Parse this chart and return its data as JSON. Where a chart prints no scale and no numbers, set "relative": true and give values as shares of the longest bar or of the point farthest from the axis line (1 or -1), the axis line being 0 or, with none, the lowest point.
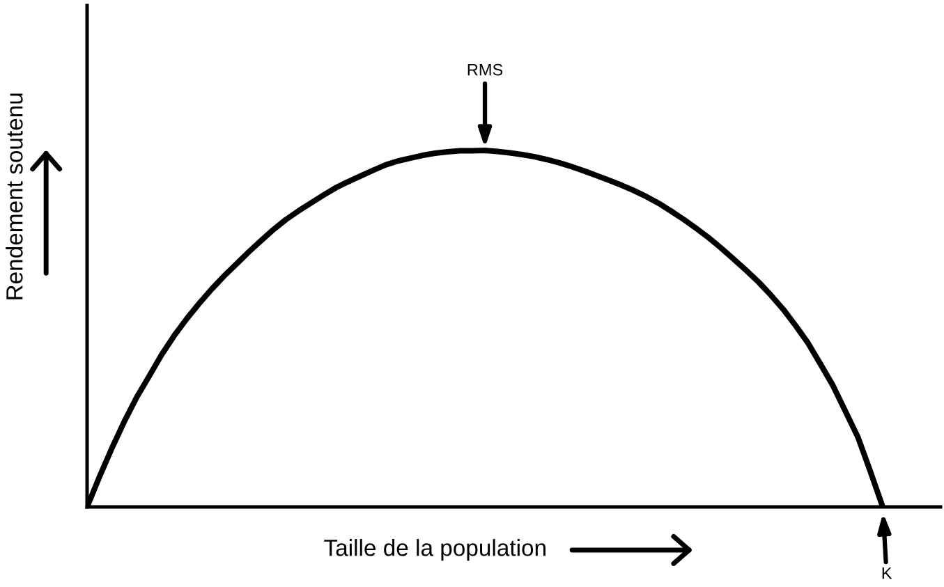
{
  "chart_data": {
    "type": "line",
    "relative": true,
    "categories": [
      null,
      null,
      null,
      null,
      null,
      null,
      null,
      null,
      null,
      null,
      null,
      null,
      null,
      null,
      null,
      null,
      null,
      null,
      null,
      null,
      null,
      null,
      null,
      null,
      null,
      null,
      null,
      null,
      null,
      null,
      null,
      null,
      null,
      null,
      null,
      null,
      null,
      null,
      null,
      null,
      null,
      null,
      null,
      null,
      null,
      null,
      null,
      null,
      null,
      null,
      null,
      null,
      null,
      null,
      null,
      null,
      null,
      null,
      null,
      null,
      null,
      null,
      null,
      null,
      null
    ],
    "series": [
      {
        "color": "#000000",
        "values": [
          0,
          0.085,
          0.165,
          0.24,
          0.308,
          0.367,
          0.427,
          0.48,
          0.527,
          0.57,
          0.61,
          0.647,
          0.681,
          0.715,
          0.747,
          0.778,
          0.806,
          0.83,
          0.852,
          0.874,
          0.895,
          0.912,
          0.928,
          0.944,
          0.959,
          0.97,
          0.978,
          0.986,
          0.992,
          0.996,
          0.999,
          0.999,
          1.0,
          0.997,
          0.993,
          0.988,
          0.982,
          0.974,
          0.965,
          0.954,
          0.942,
          0.929,
          0.916,
          0.902,
          0.887,
          0.87,
          0.851,
          0.829,
          0.806,
          0.781,
          0.755,
          0.726,
          0.695,
          0.664,
          0.631,
          0.594,
          0.554,
          0.508,
          0.459,
          0.4,
          0.34,
          0.268,
          0.196,
          0.1,
          0
        ]
      }
    ],
    "xlabel": "Taille de la population",
    "ylabel": "Rendement soutenu",
    "annotations": [
      "RMS",
      "K"
    ]
  }
}
